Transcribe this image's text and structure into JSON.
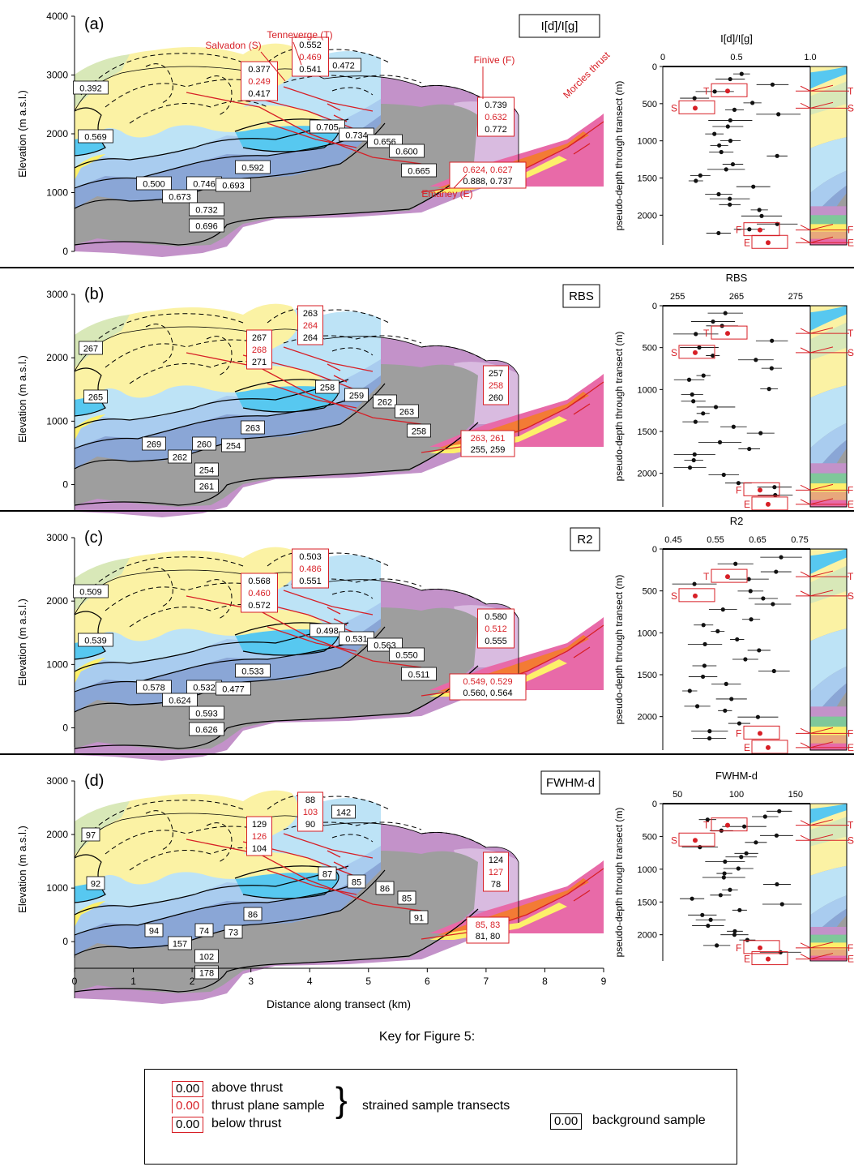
{
  "colors": {
    "thrust_red": "#d71f26",
    "purple": "#c392c9",
    "grey": "#9e9e9e",
    "dark_blue": "#8aa6d6",
    "mid_blue": "#a9ccef",
    "light_blue": "#bde3f6",
    "cyan": "#57c8f0",
    "yellow": "#fbf2a4",
    "bright_yellow": "#fdf06a",
    "green": "#d8e8b8",
    "pink": "#e86aa8",
    "orange": "#f37b35",
    "lilac": "#d9bbe0"
  },
  "labels": {
    "distance_axis": "Distance along transect (km)",
    "elevation_axis": "Elevation (m a.s.l.)",
    "depth_axis": "pseudo-depth through transect (m)",
    "salvadon": "Salvadon (S)",
    "tenneverge": "Tenneverge (T)",
    "finive": "Finive (F)",
    "emaney": "Emaney (E)",
    "morcles": "Morcles thrust"
  },
  "panels": [
    {
      "letter": "(a)",
      "param": "I[d]/I[g]",
      "yticks": [
        "4000",
        "3000",
        "2000",
        "1000",
        "0"
      ],
      "vals": {
        "b1": "0.392",
        "b2": "0.569",
        "b3": "0.500",
        "b4": "0.746",
        "b5": "0.673",
        "b6": "0.693",
        "b7": "0.732",
        "b8": "0.696",
        "b9": "0.592",
        "b10": "0.705",
        "b11": "0.734",
        "b12": "0.656",
        "b13": "0.600",
        "b14": "0.665",
        "b15": "0.472",
        "s_top": "0.377",
        "s_mid": "0.249",
        "s_bot": "0.417",
        "t_top": "0.552",
        "t_mid": "0.469",
        "t_bot": "0.541",
        "f_top": "0.739",
        "f_mid": "0.632",
        "f_bot": "0.772",
        "e_red": "0.624, 0.627",
        "e_blk": "0.888, 0.737"
      },
      "strip": {
        "title": "I[d]/I[g]",
        "ticks": [
          "0",
          "0.5",
          "1.0"
        ],
        "yticks": [
          "0",
          "500",
          "1000",
          "1500",
          "2000"
        ]
      }
    },
    {
      "letter": "(b)",
      "param": "RBS",
      "yticks": [
        "3000",
        "2000",
        "1000",
        "0"
      ],
      "vals": {
        "b1": "267",
        "b2": "265",
        "b3": "269",
        "b4": "260",
        "b5": "262",
        "b6": "254",
        "b7": "254",
        "b8": "261",
        "b9": "263",
        "b10": "258",
        "b11": "259",
        "b12": "262",
        "b13": "263",
        "b14": "258",
        "b15": "",
        "s_top": "267",
        "s_mid": "268",
        "s_bot": "271",
        "t_top": "263",
        "t_mid": "264",
        "t_bot": "264",
        "f_top": "257",
        "f_mid": "258",
        "f_bot": "260",
        "e_red": "263, 261",
        "e_blk": "255, 259"
      },
      "strip": {
        "title": "RBS",
        "ticks": [
          "255",
          "265",
          "275"
        ],
        "yticks": [
          "0",
          "500",
          "1000",
          "1500",
          "2000"
        ]
      }
    },
    {
      "letter": "(c)",
      "param": "R2",
      "yticks": [
        "3000",
        "2000",
        "1000",
        "0"
      ],
      "vals": {
        "b1": "0.509",
        "b2": "0.539",
        "b3": "0.578",
        "b4": "0.532",
        "b5": "0.624",
        "b6": "0.477",
        "b7": "0.593",
        "b8": "0.626",
        "b9": "0.533",
        "b10": "0.498",
        "b11": "0.531",
        "b12": "0.563",
        "b13": "0.550",
        "b14": "0.511",
        "b15": "",
        "s_top": "0.568",
        "s_mid": "0.460",
        "s_bot": "0.572",
        "t_top": "0.503",
        "t_mid": "0.486",
        "t_bot": "0.551",
        "f_top": "0.580",
        "f_mid": "0.512",
        "f_bot": "0.555",
        "e_red": "0.549, 0.529",
        "e_blk": "0.560, 0.564"
      },
      "strip": {
        "title": "R2",
        "ticks": [
          "0.45",
          "0.55",
          "0.65",
          "0.75"
        ],
        "yticks": [
          "0",
          "500",
          "1000",
          "1500",
          "2000"
        ]
      }
    },
    {
      "letter": "(d)",
      "param": "FWHM-d",
      "yticks": [
        "3000",
        "2000",
        "1000",
        "0"
      ],
      "vals": {
        "b1": "97",
        "b2": "92",
        "b3": "94",
        "b4": "74",
        "b5": "157",
        "b6": "73",
        "b7": "102",
        "b8": "178",
        "b9": "86",
        "b10": "87",
        "b11": "85",
        "b12": "86",
        "b13": "85",
        "b14": "91",
        "b15": "142",
        "s_top": "129",
        "s_mid": "126",
        "s_bot": "104",
        "t_top": "88",
        "t_mid": "103",
        "t_bot": "90",
        "f_top": "124",
        "f_mid": "127",
        "f_bot": "78",
        "e_red": "85, 83",
        "e_blk": "81, 80"
      },
      "strip": {
        "title": "FWHM-d",
        "ticks": [
          "50",
          "100",
          "150"
        ],
        "yticks": [
          "0",
          "500",
          "1000",
          "1500",
          "2000"
        ]
      }
    }
  ],
  "x_ticks": [
    "0",
    "1",
    "2",
    "3",
    "4",
    "5",
    "6",
    "7",
    "8",
    "9"
  ],
  "thrust_letters": [
    "T",
    "S",
    "F",
    "E"
  ],
  "key": {
    "title": "Key for Figure 5:",
    "sample_value": "0.00",
    "above": "above thrust",
    "plane": "thrust plane sample",
    "below": "below thrust",
    "transects": "strained sample transects",
    "background": "background sample"
  }
}
